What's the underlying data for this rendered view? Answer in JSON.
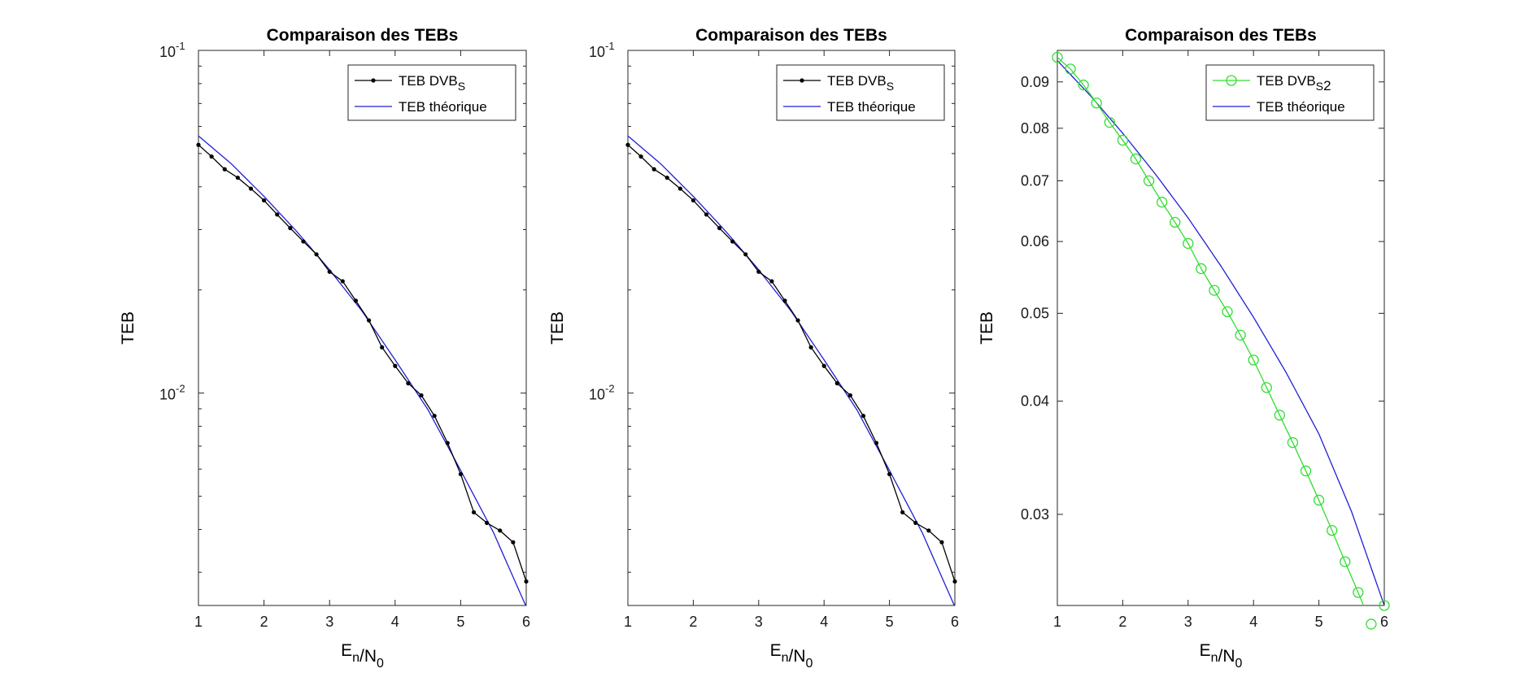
{
  "chart_data": [
    {
      "type": "line",
      "title": "Comparaison des TEBs",
      "xlabel": "E_n/N_0",
      "ylabel": "TEB",
      "xlim": [
        1,
        6
      ],
      "ylim": [
        0.0024,
        0.1
      ],
      "yscale": "log",
      "xticks": [
        "1",
        "2",
        "3",
        "4",
        "5",
        "6"
      ],
      "yticks": [
        {
          "value": 0.1,
          "label": "10-1",
          "base": "10",
          "exp": "-1"
        },
        {
          "value": 0.01,
          "label": "10-2",
          "base": "10",
          "exp": "-2"
        }
      ],
      "grid": false,
      "legend": "top-right",
      "series": [
        {
          "name": "TEB DVB_S",
          "color": "#000000",
          "marker": "dot",
          "x": [
            1,
            1.2,
            1.4,
            1.6,
            1.8,
            2,
            2.2,
            2.4,
            2.6,
            2.8,
            3,
            3.2,
            3.4,
            3.6,
            3.8,
            4,
            4.2,
            4.4,
            4.6,
            4.8,
            5,
            5.2,
            5.4,
            5.6,
            5.8,
            6
          ],
          "values": [
            0.053,
            0.049,
            0.045,
            0.0425,
            0.0395,
            0.0365,
            0.0332,
            0.0303,
            0.0277,
            0.0254,
            0.0226,
            0.0212,
            0.0186,
            0.0163,
            0.0136,
            0.012,
            0.01068,
            0.00985,
            0.00858,
            0.00715,
            0.0058,
            0.00449,
            0.00418,
            0.00397,
            0.00367,
            0.00282
          ]
        },
        {
          "name": "TEB théorique",
          "color": "#1f1fd6",
          "marker": "none",
          "x": [
            1,
            1.5,
            2,
            2.5,
            3,
            3.5,
            4,
            4.5,
            5,
            5.5,
            6
          ],
          "values": [
            0.0563,
            0.0467,
            0.0375,
            0.0296,
            0.0229,
            0.0173,
            0.0125,
            0.00895,
            0.00595,
            0.00392,
            0.00238
          ]
        }
      ]
    },
    {
      "type": "line",
      "title": "Comparaison des TEBs",
      "xlabel": "E_n/N_0",
      "ylabel": "TEB",
      "xlim": [
        1,
        6
      ],
      "ylim": [
        0.0024,
        0.1
      ],
      "yscale": "log",
      "xticks": [
        "1",
        "2",
        "3",
        "4",
        "5",
        "6"
      ],
      "yticks": [
        {
          "value": 0.1,
          "label": "10-1",
          "base": "10",
          "exp": "-1"
        },
        {
          "value": 0.01,
          "label": "10-2",
          "base": "10",
          "exp": "-2"
        }
      ],
      "grid": false,
      "legend": "top-right",
      "series": [
        {
          "name": "TEB DVB_S",
          "color": "#000000",
          "marker": "dot",
          "x": [
            1,
            1.2,
            1.4,
            1.6,
            1.8,
            2,
            2.2,
            2.4,
            2.6,
            2.8,
            3,
            3.2,
            3.4,
            3.6,
            3.8,
            4,
            4.2,
            4.4,
            4.6,
            4.8,
            5,
            5.2,
            5.4,
            5.6,
            5.8,
            6
          ],
          "values": [
            0.053,
            0.049,
            0.045,
            0.0425,
            0.0395,
            0.0365,
            0.0332,
            0.0303,
            0.0277,
            0.0254,
            0.0226,
            0.0212,
            0.0186,
            0.0163,
            0.0136,
            0.012,
            0.01068,
            0.00985,
            0.00858,
            0.00715,
            0.0058,
            0.00449,
            0.00418,
            0.00397,
            0.00367,
            0.00282
          ]
        },
        {
          "name": "TEB théorique",
          "color": "#1f1fd6",
          "marker": "none",
          "x": [
            1,
            1.5,
            2,
            2.5,
            3,
            3.5,
            4,
            4.5,
            5,
            5.5,
            6
          ],
          "values": [
            0.0563,
            0.0467,
            0.0375,
            0.0296,
            0.0229,
            0.0173,
            0.0125,
            0.00895,
            0.00595,
            0.00392,
            0.00238
          ]
        }
      ]
    },
    {
      "type": "line",
      "title": "Comparaison des TEBs",
      "xlabel": "E_n/N_0",
      "ylabel": "TEB",
      "xlim": [
        1,
        6
      ],
      "ylim": [
        0.0238,
        0.0975
      ],
      "yscale": "log",
      "xticks": [
        "1",
        "2",
        "3",
        "4",
        "5",
        "6"
      ],
      "yticks": [
        {
          "value": 0.03,
          "label": "0.03"
        },
        {
          "value": 0.04,
          "label": "0.04"
        },
        {
          "value": 0.05,
          "label": "0.05"
        },
        {
          "value": 0.06,
          "label": "0.06"
        },
        {
          "value": 0.07,
          "label": "0.07"
        },
        {
          "value": 0.08,
          "label": "0.08"
        },
        {
          "value": 0.09,
          "label": "0.09"
        }
      ],
      "grid": false,
      "legend": "top-right",
      "series": [
        {
          "name": "TEB DVB_S2",
          "color": "#33dd33",
          "marker": "circle",
          "x": [
            1,
            1.2,
            1.4,
            1.6,
            1.8,
            2,
            2.2,
            2.4,
            2.6,
            2.8,
            3,
            3.2,
            3.4,
            3.6,
            3.8,
            4,
            4.2,
            4.4,
            4.6,
            4.8,
            5,
            5.2,
            5.4,
            5.6,
            5.8,
            6
          ],
          "values": [
            0.0958,
            0.093,
            0.0893,
            0.0853,
            0.0812,
            0.0776,
            0.074,
            0.07,
            0.0663,
            0.063,
            0.0597,
            0.056,
            0.053,
            0.0502,
            0.0473,
            0.0444,
            0.0414,
            0.0386,
            0.036,
            0.0335,
            0.0311,
            0.0288,
            0.0266,
            0.0246,
            0.0227,
            0.0238
          ]
        },
        {
          "name": "TEB théorique",
          "color": "#1f1fd6",
          "marker": "none",
          "x": [
            1,
            1.5,
            2,
            2.5,
            3,
            3.5,
            4,
            4.5,
            5,
            5.5,
            6
          ],
          "values": [
            0.095,
            0.087,
            0.079,
            0.0712,
            0.0637,
            0.0564,
            0.0495,
            0.043,
            0.0368,
            0.0302,
            0.0238
          ]
        }
      ]
    }
  ]
}
